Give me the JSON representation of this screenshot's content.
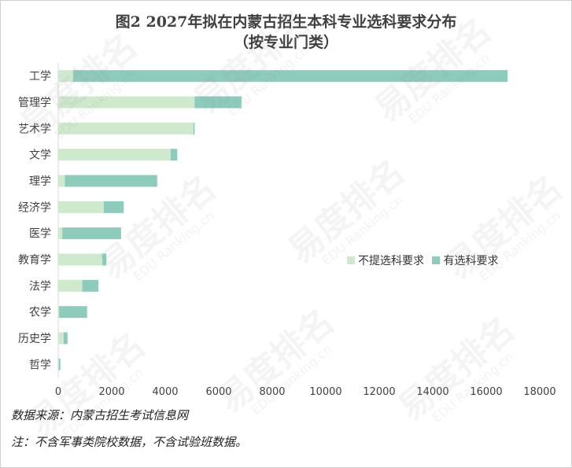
{
  "title_line1": "图2 2027年拟在内蒙古招生本科专业选科要求分布",
  "title_line2": "（按专业门类）",
  "source_note": "数据来源：内蒙古招生考试信息网",
  "remark_note": "注：不含军事类院校数据，不含试验班数据。",
  "watermark_text": "易度排名",
  "watermark_sub": "EDU Ranking.cn",
  "colors": {
    "no_requirement": "#cfe9cd",
    "has_requirement": "#8dcbbd"
  },
  "chart_data": {
    "type": "bar",
    "orientation": "horizontal",
    "stacked": true,
    "categories": [
      "工学",
      "管理学",
      "艺术学",
      "文学",
      "理学",
      "经济学",
      "医学",
      "教育学",
      "法学",
      "农学",
      "历史学",
      "哲学"
    ],
    "series": [
      {
        "name": "不提选科要求",
        "values": [
          550,
          5100,
          5050,
          4200,
          250,
          1700,
          150,
          1650,
          900,
          30,
          200,
          20
        ]
      },
      {
        "name": "有选科要求",
        "values": [
          16250,
          1750,
          50,
          250,
          3450,
          750,
          2200,
          150,
          600,
          1050,
          150,
          60
        ]
      }
    ],
    "xlim": [
      0,
      18000
    ],
    "xticks": [
      0,
      2000,
      4000,
      6000,
      8000,
      10000,
      12000,
      14000,
      16000,
      18000
    ],
    "grid": false,
    "legend_position": "right-middle"
  }
}
